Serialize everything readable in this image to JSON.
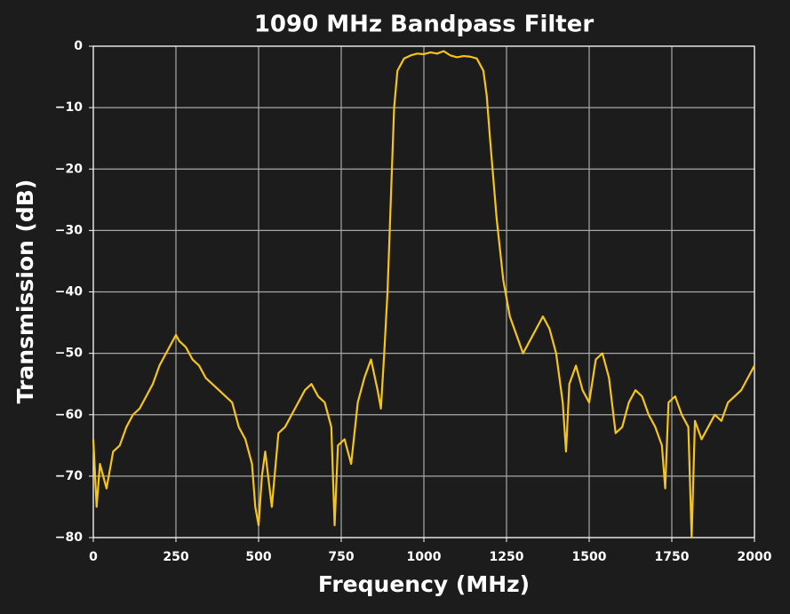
{
  "chart_data": {
    "type": "line",
    "title": "1090 MHz Bandpass Filter",
    "x_label": "Frequency (MHz)",
    "y_label": "Transmission (dB)",
    "grid": true,
    "xlim": [
      0,
      2000
    ],
    "ylim": [
      -80,
      0
    ],
    "xticks": [
      0,
      250,
      500,
      750,
      1000,
      1250,
      1500,
      1750,
      2000
    ],
    "yticks": [
      0,
      {
        "value": -10,
        "label": "−10"
      },
      {
        "value": -20,
        "label": "−20"
      },
      {
        "value": -30,
        "label": "−30"
      },
      {
        "value": -40,
        "label": "−40"
      },
      {
        "value": -50,
        "label": "−50"
      },
      {
        "value": -60,
        "label": "−60"
      },
      {
        "value": -70,
        "label": "−70"
      },
      {
        "value": -80,
        "label": "−80"
      }
    ],
    "series": [
      {
        "color": "#f5c518",
        "x": [
          0,
          10,
          20,
          40,
          60,
          80,
          100,
          120,
          140,
          160,
          180,
          200,
          220,
          240,
          250,
          260,
          280,
          300,
          320,
          340,
          360,
          380,
          400,
          420,
          440,
          460,
          480,
          490,
          500,
          510,
          520,
          540,
          560,
          580,
          600,
          620,
          640,
          660,
          680,
          700,
          720,
          730,
          740,
          760,
          780,
          800,
          820,
          840,
          860,
          870,
          880,
          890,
          900,
          910,
          920,
          940,
          960,
          980,
          1000,
          1020,
          1040,
          1060,
          1080,
          1100,
          1120,
          1140,
          1160,
          1180,
          1190,
          1200,
          1220,
          1240,
          1260,
          1280,
          1300,
          1320,
          1340,
          1360,
          1380,
          1400,
          1420,
          1430,
          1440,
          1460,
          1480,
          1500,
          1520,
          1540,
          1560,
          1580,
          1600,
          1620,
          1640,
          1660,
          1680,
          1700,
          1720,
          1730,
          1740,
          1760,
          1780,
          1800,
          1810,
          1820,
          1840,
          1860,
          1880,
          1900,
          1920,
          1940,
          1960,
          1980,
          2000
        ],
        "values": [
          -64,
          -75,
          -68,
          -72,
          -66,
          -65,
          -62,
          -60,
          -59,
          -57,
          -55,
          -52,
          -50,
          -48,
          -47,
          -48,
          -49,
          -51,
          -52,
          -54,
          -55,
          -56,
          -57,
          -58,
          -62,
          -64,
          -68,
          -75,
          -78,
          -70,
          -66,
          -75,
          -63,
          -62,
          -60,
          -58,
          -56,
          -55,
          -57,
          -58,
          -62,
          -78,
          -65,
          -64,
          -68,
          -58,
          -54,
          -51,
          -56,
          -59,
          -50,
          -40,
          -25,
          -10,
          -4,
          -2,
          -1.5,
          -1.2,
          -1.3,
          -1,
          -1.2,
          -0.8,
          -1.5,
          -1.8,
          -1.6,
          -1.7,
          -2,
          -4,
          -8,
          -15,
          -28,
          -38,
          -44,
          -47,
          -50,
          -48,
          -46,
          -44,
          -46,
          -50,
          -58,
          -66,
          -55,
          -52,
          -56,
          -58,
          -51,
          -50,
          -54,
          -63,
          -62,
          -58,
          -56,
          -57,
          -60,
          -62,
          -65,
          -72,
          -58,
          -57,
          -60,
          -62,
          -80,
          -61,
          -64,
          -62,
          -60,
          -61,
          -58,
          -57,
          -56,
          -54,
          -52
        ]
      }
    ]
  }
}
